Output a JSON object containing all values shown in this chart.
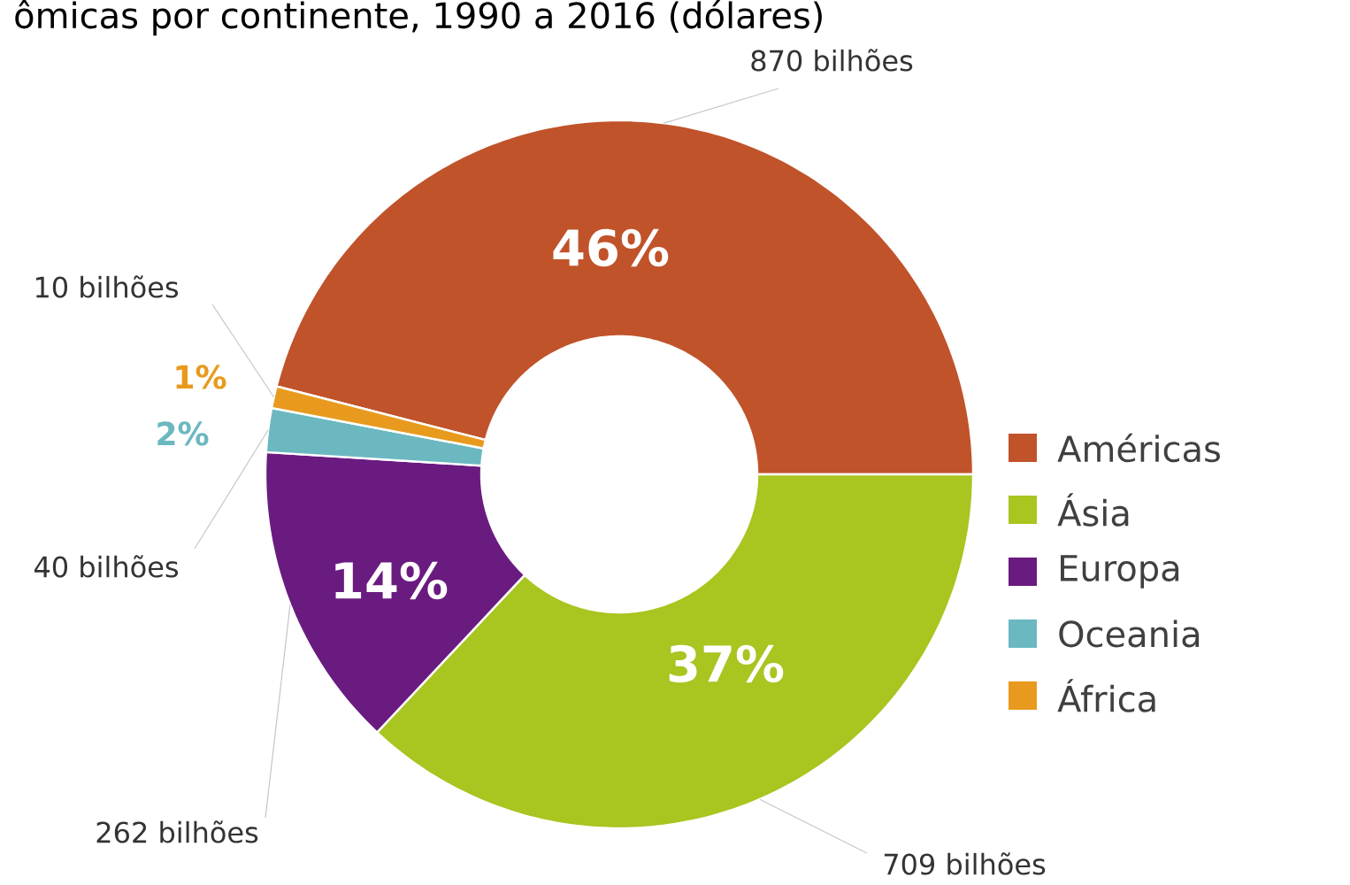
{
  "chart_data": {
    "type": "donut",
    "title": "ômicas por continente, 1990 a 2016 (dólares)",
    "categories": [
      "Américas",
      "Ásia",
      "Europa",
      "Oceania",
      "África"
    ],
    "values": [
      46,
      37,
      14,
      2,
      1
    ],
    "colors": [
      "#c0532a",
      "#a8c520",
      "#6a1b7f",
      "#6bb8c0",
      "#e89a1e"
    ],
    "value_labels": [
      "46%",
      "37%",
      "14%",
      "2%",
      "1%"
    ],
    "annotations": [
      "870 bilhões",
      "709 bilhões",
      "262 bilhões",
      "40 bilhões",
      "10 bilhões"
    ],
    "legend": "right"
  }
}
